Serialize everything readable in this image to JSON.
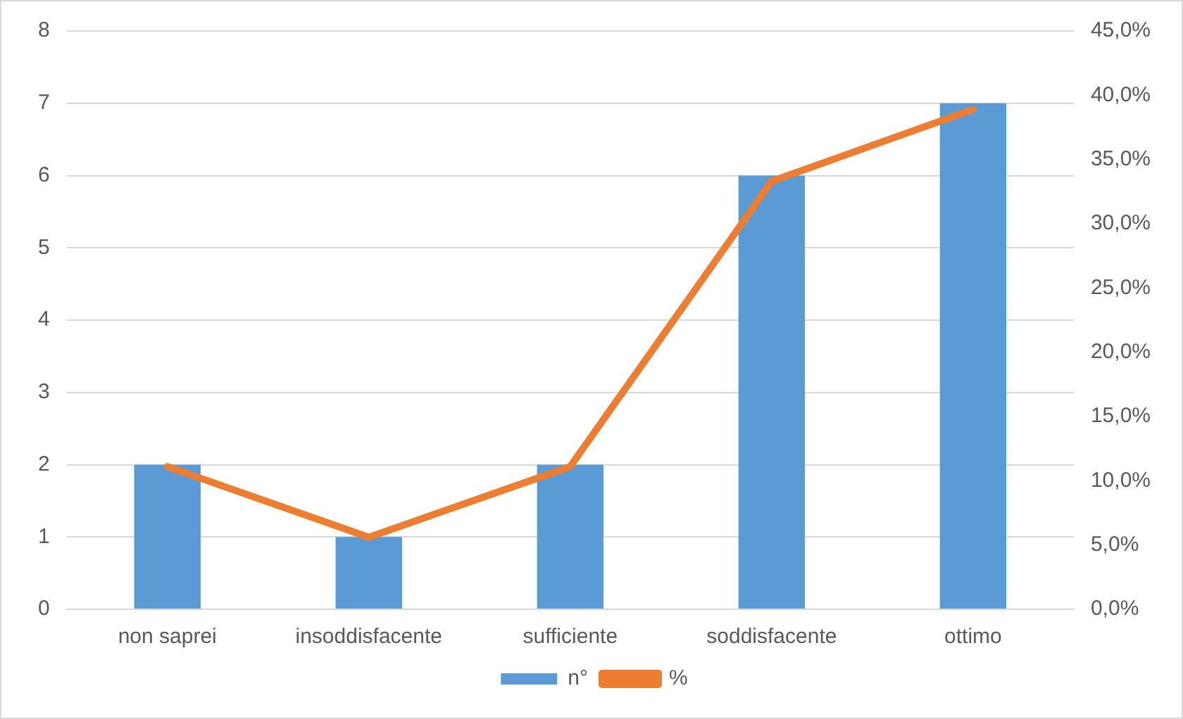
{
  "chart_data": {
    "type": "bar",
    "categories": [
      "non saprei",
      "insoddisfacente",
      "sufficiente",
      "soddisfacente",
      "ottimo"
    ],
    "series": [
      {
        "name": "n°",
        "color": "#5b9bd5",
        "values": [
          2,
          1,
          2,
          6,
          7
        ]
      },
      {
        "name": "%",
        "type": "line",
        "axis": "y2",
        "color": "#ed7d31",
        "values": [
          11.1,
          5.6,
          11.1,
          33.3,
          38.9
        ]
      }
    ],
    "ylim": [
      0,
      8
    ],
    "yticks": [
      0,
      1,
      2,
      3,
      4,
      5,
      6,
      7,
      8
    ],
    "y2lim": [
      0,
      45
    ],
    "y2ticks": [
      {
        "value": 0,
        "label": "0,0%"
      },
      {
        "value": 5,
        "label": "5,0%"
      },
      {
        "value": 10,
        "label": "10,0%"
      },
      {
        "value": 15,
        "label": "15,0%"
      },
      {
        "value": 20,
        "label": "20,0%"
      },
      {
        "value": 25,
        "label": "25,0%"
      },
      {
        "value": 30,
        "label": "30,0%"
      },
      {
        "value": 35,
        "label": "35,0%"
      },
      {
        "value": 40,
        "label": "40,0%"
      },
      {
        "value": 45,
        "label": "45,0%"
      }
    ],
    "grid": "y",
    "legend": "bottom",
    "marker": "none",
    "line_style": "solid"
  }
}
